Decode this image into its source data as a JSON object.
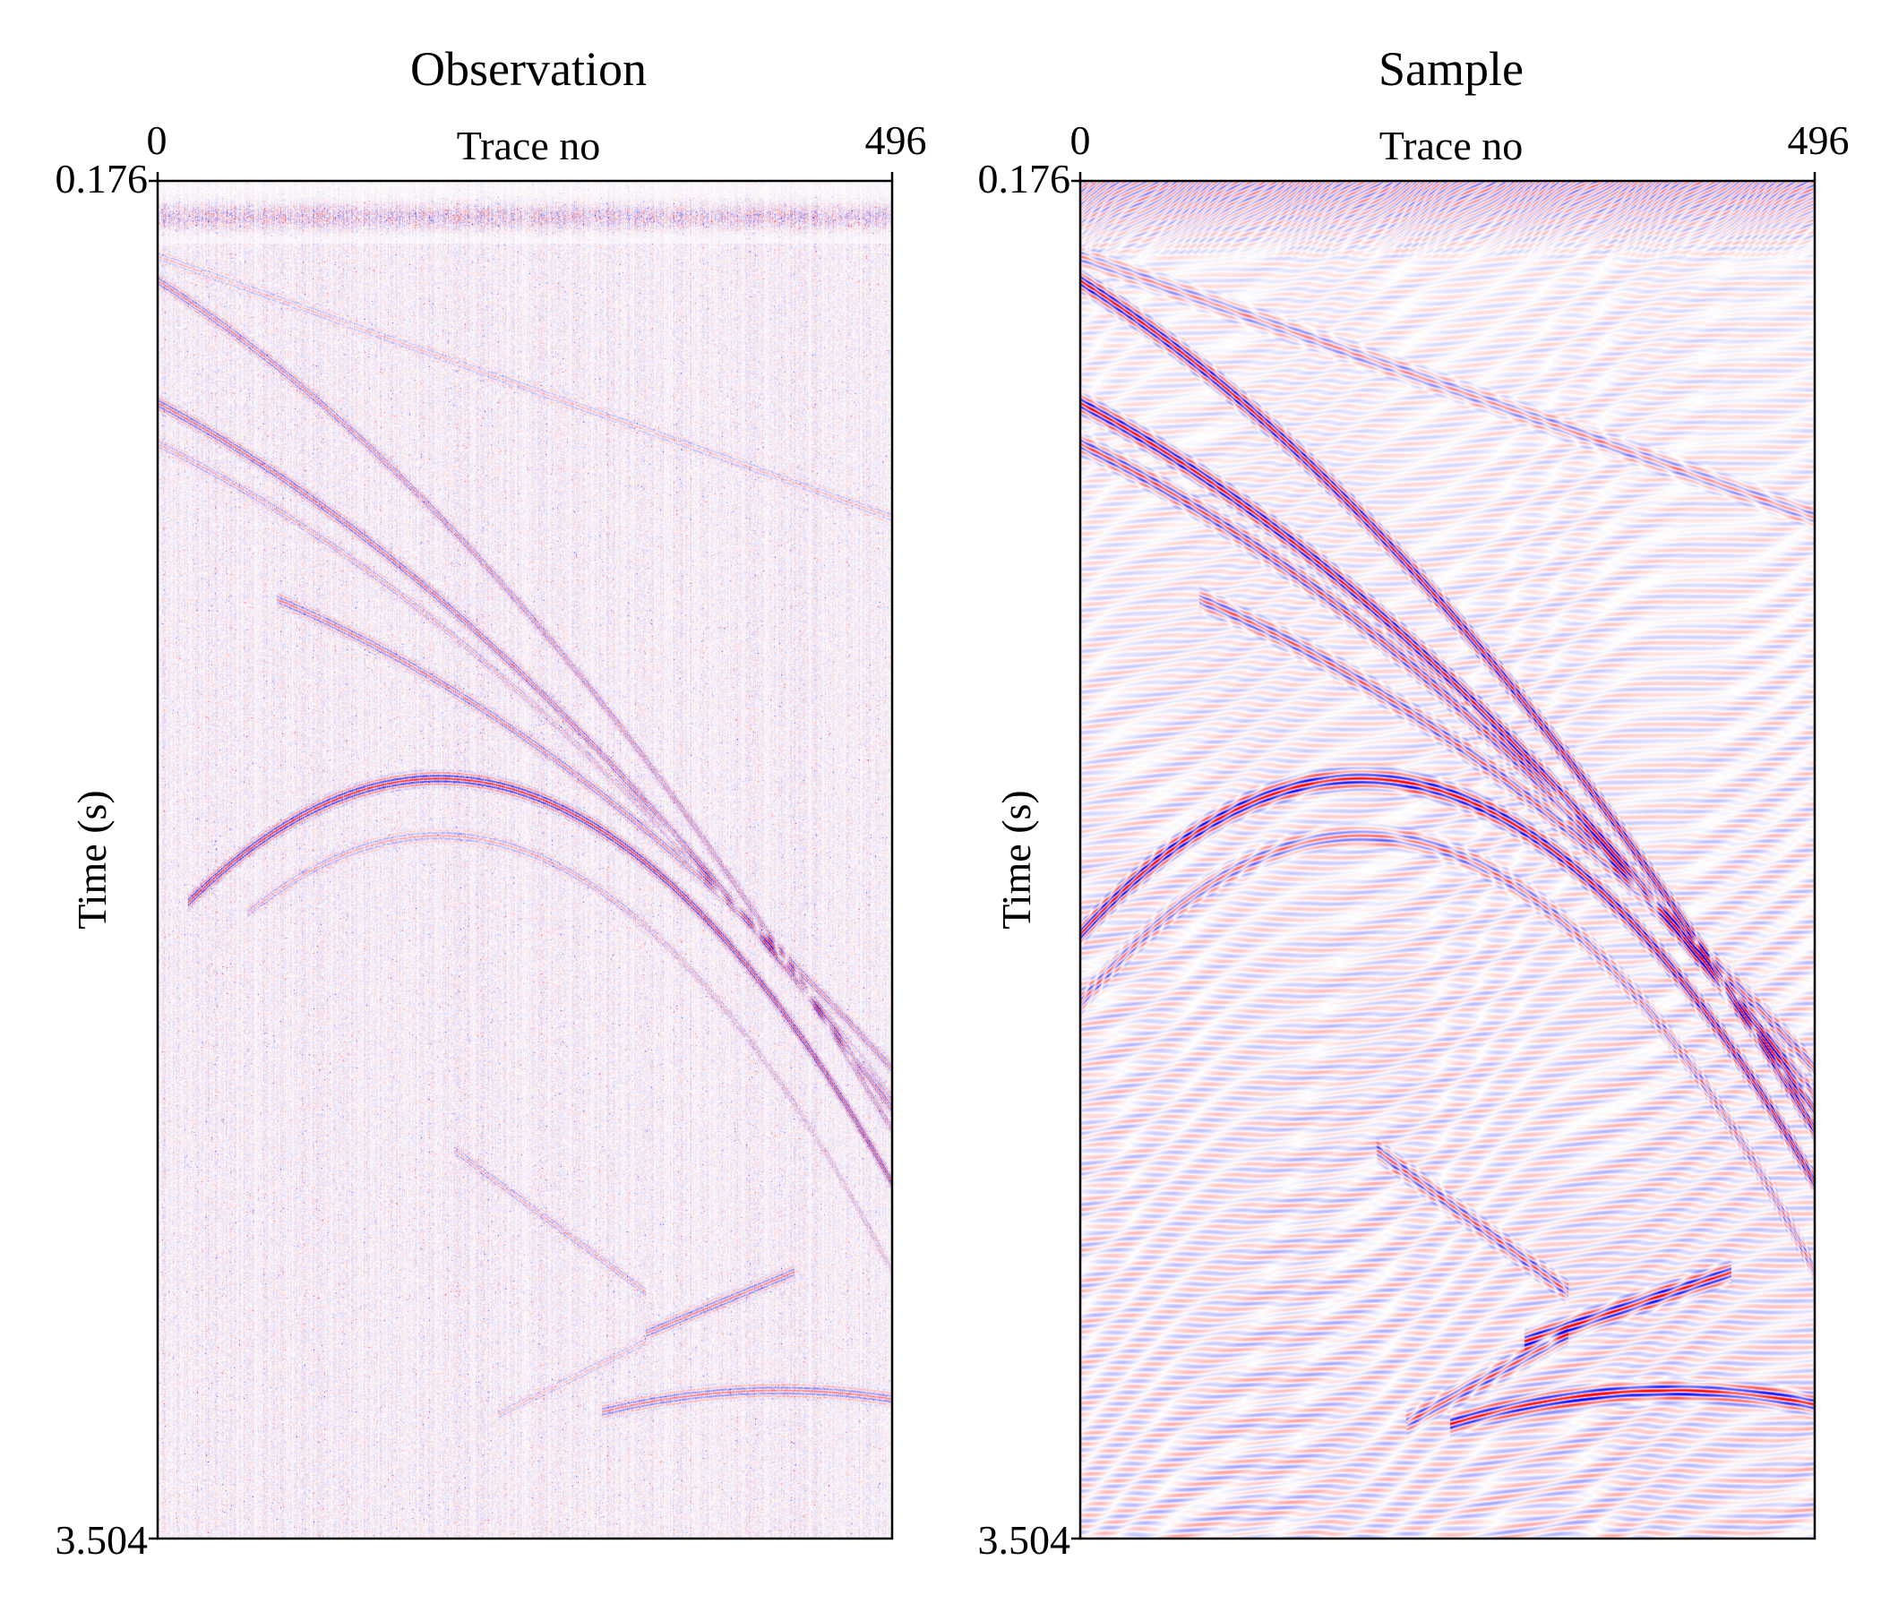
{
  "chart_data": [
    {
      "type": "heatmap",
      "title": "Observation",
      "xlabel": "Trace no",
      "ylabel": "Time (s)",
      "xlim": [
        0,
        496
      ],
      "ylim": [
        0.176,
        3.504
      ],
      "x_ticks": [
        "0",
        "496"
      ],
      "y_ticks": [
        "0.176",
        "3.504"
      ],
      "colormap": [
        "#0000ff",
        "#ffffff",
        "#ff0000"
      ],
      "y_axis_inverted": true,
      "x_axis_position": "top",
      "texture": "sparse-noisy",
      "events": [
        {
          "kind": "linear",
          "from": [
            0,
            0.36
          ],
          "to": [
            496,
            1.0
          ],
          "amplitude": 0.3
        },
        {
          "kind": "diving",
          "start": [
            0,
            0.42
          ],
          "end": [
            496,
            2.5
          ],
          "amplitude": 0.6
        },
        {
          "kind": "diving",
          "start": [
            0,
            0.72
          ],
          "end": [
            496,
            2.45
          ],
          "amplitude": 0.7
        },
        {
          "kind": "diving",
          "start": [
            0,
            0.82
          ],
          "end": [
            496,
            2.42
          ],
          "amplitude": 0.4
        },
        {
          "kind": "diving",
          "start": [
            80,
            1.2
          ],
          "end": [
            496,
            2.35
          ],
          "amplitude": 0.6
        },
        {
          "kind": "hyperbola",
          "apex": [
            190,
            1.64
          ],
          "curvature": 2.6,
          "x_range": [
            20,
            496
          ],
          "amplitude": 1.0
        },
        {
          "kind": "hyperbola",
          "apex": [
            190,
            1.78
          ],
          "curvature": 2.8,
          "x_range": [
            60,
            496
          ],
          "amplitude": 0.4
        },
        {
          "kind": "linear",
          "from": [
            200,
            2.55
          ],
          "to": [
            330,
            2.9
          ],
          "amplitude": 0.4
        },
        {
          "kind": "linear",
          "from": [
            330,
            3.0
          ],
          "to": [
            430,
            2.85
          ],
          "amplitude": 0.6
        },
        {
          "kind": "hyperbola",
          "apex": [
            420,
            3.14
          ],
          "curvature": 0.9,
          "x_range": [
            300,
            496
          ],
          "amplitude": 0.6
        },
        {
          "kind": "linear",
          "from": [
            230,
            3.2
          ],
          "to": [
            330,
            3.02
          ],
          "amplitude": 0.3
        }
      ]
    },
    {
      "type": "heatmap",
      "title": "Sample",
      "xlabel": "Trace no",
      "ylabel": "Time (s)",
      "xlim": [
        0,
        496
      ],
      "ylim": [
        0.176,
        3.504
      ],
      "x_ticks": [
        "0",
        "496"
      ],
      "y_ticks": [
        "0.176",
        "3.504"
      ],
      "colormap": [
        "#0000ff",
        "#ffffff",
        "#ff0000"
      ],
      "y_axis_inverted": true,
      "x_axis_position": "top",
      "texture": "smooth",
      "events": [
        {
          "kind": "linear",
          "from": [
            0,
            0.36
          ],
          "to": [
            496,
            1.0
          ],
          "amplitude": 0.4
        },
        {
          "kind": "diving",
          "start": [
            0,
            0.42
          ],
          "end": [
            496,
            2.5
          ],
          "amplitude": 1.0
        },
        {
          "kind": "diving",
          "start": [
            0,
            0.72
          ],
          "end": [
            496,
            2.45
          ],
          "amplitude": 1.0
        },
        {
          "kind": "diving",
          "start": [
            0,
            0.82
          ],
          "end": [
            496,
            2.42
          ],
          "amplitude": 0.7
        },
        {
          "kind": "diving",
          "start": [
            80,
            1.2
          ],
          "end": [
            496,
            2.35
          ],
          "amplitude": 0.6
        },
        {
          "kind": "hyperbola",
          "apex": [
            190,
            1.64
          ],
          "curvature": 2.6,
          "x_range": [
            0,
            496
          ],
          "amplitude": 1.0
        },
        {
          "kind": "hyperbola",
          "apex": [
            190,
            1.78
          ],
          "curvature": 2.8,
          "x_range": [
            0,
            496
          ],
          "amplitude": 0.5
        },
        {
          "kind": "linear",
          "from": [
            200,
            2.55
          ],
          "to": [
            330,
            2.9
          ],
          "amplitude": 0.6
        },
        {
          "kind": "linear",
          "from": [
            300,
            3.02
          ],
          "to": [
            440,
            2.85
          ],
          "amplitude": 0.9
        },
        {
          "kind": "hyperbola",
          "apex": [
            400,
            3.14
          ],
          "curvature": 0.9,
          "x_range": [
            250,
            496
          ],
          "amplitude": 0.9
        },
        {
          "kind": "linear",
          "from": [
            220,
            3.22
          ],
          "to": [
            330,
            3.0
          ],
          "amplitude": 0.6
        }
      ]
    }
  ]
}
